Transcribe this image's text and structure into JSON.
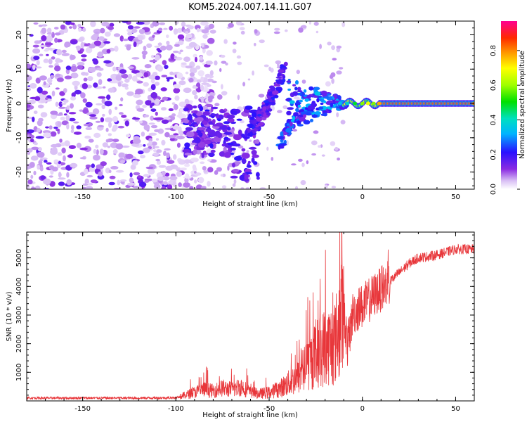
{
  "title": "KOM5.2024.007.14.11.G07",
  "chart_data": [
    {
      "type": "heatmap",
      "xlabel": "Height of straight line (km)",
      "ylabel": "Frequency (Hz)",
      "xlim": [
        -180,
        60
      ],
      "ylim": [
        -25,
        24
      ],
      "xticks": [
        -150,
        -100,
        -50,
        0,
        50
      ],
      "yticks": [
        -20,
        -10,
        0,
        10,
        20
      ],
      "colorbar": {
        "label": "Normalized spectral amplitude",
        "range": [
          0,
          0.97
        ],
        "ticks": [
          0.0,
          0.2,
          0.4,
          0.6,
          0.8
        ],
        "colormap": "white-purple-blue-cyan-green-yellow-orange-red-pink"
      },
      "features": {
        "noise_region_x": [
          -180,
          -95
        ],
        "tone_line_x": [
          -10,
          60
        ],
        "tone_line_freq": 0,
        "tone_line_amplitude": 0.85,
        "rising_branch": [
          [
            -60,
            -8
          ],
          [
            -50,
            0
          ],
          [
            -42,
            10
          ]
        ],
        "falling_branch": [
          [
            -45,
            -12
          ],
          [
            -38,
            -6
          ],
          [
            -30,
            -2
          ]
        ]
      }
    },
    {
      "type": "line",
      "xlabel": "Height of straight line (km)",
      "ylabel": "SNR (10 * v/v)",
      "xlim": [
        -180,
        60
      ],
      "ylim": [
        0,
        5900
      ],
      "xticks": [
        -150,
        -100,
        -50,
        0,
        50
      ],
      "yticks": [
        1000,
        2000,
        3000,
        4000,
        5000
      ],
      "line_color": "#e8363a",
      "series": [
        {
          "x": [
            -180,
            -150,
            -120,
            -100,
            -95,
            -90,
            -85,
            -80,
            -75,
            -70,
            -65,
            -60,
            -55,
            -50,
            -45,
            -40,
            -35,
            -30,
            -25,
            -20,
            -15,
            -12,
            -10,
            -8,
            -5,
            0,
            5,
            8,
            10,
            12,
            15,
            20,
            25,
            30,
            40,
            50,
            60
          ],
          "values": [
            100,
            100,
            100,
            110,
            200,
            300,
            400,
            350,
            450,
            400,
            500,
            300,
            250,
            300,
            400,
            600,
            800,
            1200,
            1600,
            1900,
            2000,
            2700,
            3200,
            1900,
            3100,
            3300,
            3600,
            3800,
            3900,
            4000,
            4200,
            4500,
            4800,
            5000,
            5100,
            5300,
            5300
          ]
        }
      ]
    }
  ]
}
